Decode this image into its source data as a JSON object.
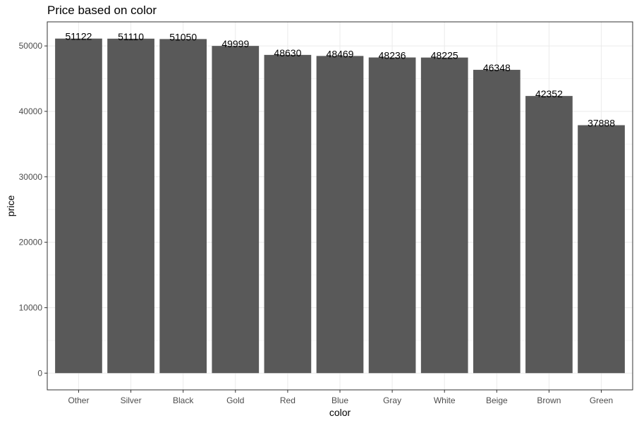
{
  "chart_data": {
    "type": "bar",
    "title": "Price based on color",
    "xlabel": "color",
    "ylabel": "price",
    "categories": [
      "Other",
      "Silver",
      "Black",
      "Gold",
      "Red",
      "Blue",
      "Gray",
      "White",
      "Beige",
      "Brown",
      "Green"
    ],
    "values": [
      51122,
      51110,
      51050,
      49999,
      48630,
      48469,
      48236,
      48225,
      46348,
      42352,
      37888
    ],
    "data_labels": [
      "51122",
      "51110",
      "51050",
      "49999",
      "48630",
      "48469",
      "48236",
      "48225",
      "46348",
      "42352",
      "37888"
    ],
    "ylim": [
      -2556,
      53678
    ],
    "yticks": [
      0,
      10000,
      20000,
      30000,
      40000,
      50000
    ],
    "ytick_labels": [
      "0",
      "10000",
      "20000",
      "30000",
      "40000",
      "50000"
    ],
    "grid": true,
    "legend": "none",
    "colors": {
      "bar": "#595959",
      "grid_major": "#ebebeb",
      "grid_minor": "#f5f5f5",
      "panel_border": "#333333",
      "tick_text": "#4d4d4d",
      "text": "#000000"
    }
  }
}
